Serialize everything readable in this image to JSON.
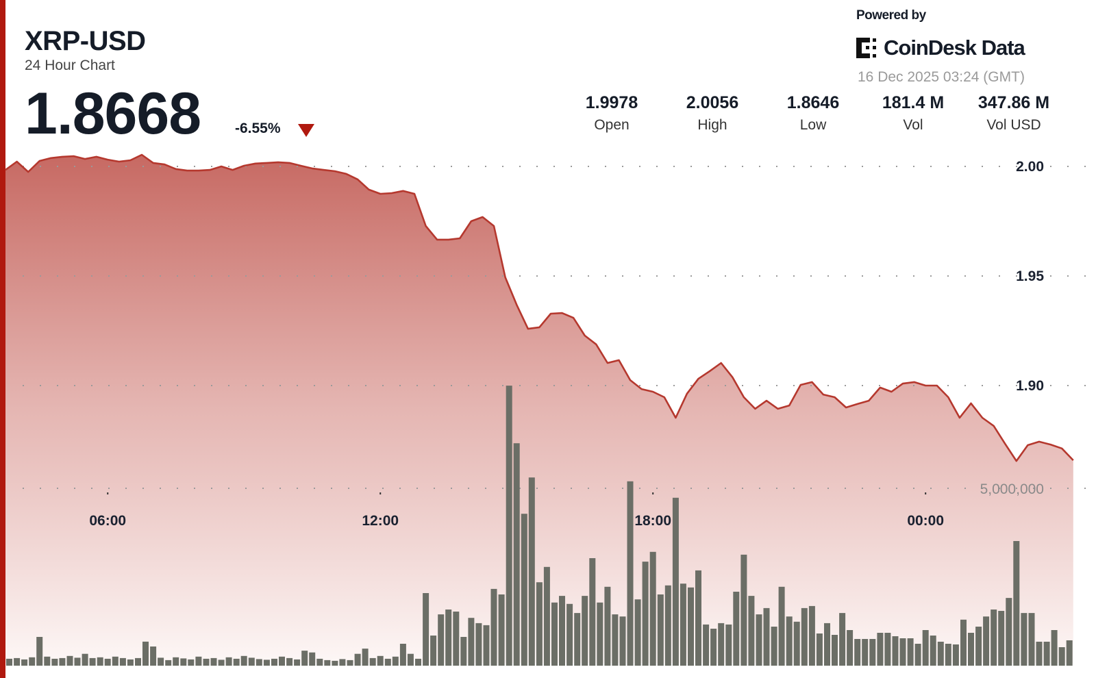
{
  "header": {
    "title": "XRP-USD",
    "subtitle": "24 Hour Chart",
    "price": "1.8668",
    "change": "-6.55%",
    "change_direction": "down",
    "powered_by": "Powered by",
    "brand": "CoinDesk Data",
    "timestamp": "16 Dec 2025 03:24 (GMT)"
  },
  "stats": [
    {
      "value": "1.9978",
      "label": "Open"
    },
    {
      "value": "2.0056",
      "label": "High"
    },
    {
      "value": "1.8646",
      "label": "Low"
    },
    {
      "value": "181.4 M",
      "label": "Vol"
    },
    {
      "value": "347.86 M",
      "label": "Vol USD"
    }
  ],
  "colors": {
    "accent": "#b0190f",
    "line": "#b5382e",
    "fill_top": "#c4625b",
    "volume_bar": "#6b6e66"
  },
  "chart_data": {
    "type": "area",
    "price": {
      "start_time": "03:45",
      "interval_minutes": 15,
      "values": [
        1.9984,
        2.0022,
        1.9975,
        2.0025,
        2.0038,
        2.0044,
        2.0047,
        2.0034,
        2.0044,
        2.0031,
        2.0022,
        2.0028,
        2.0053,
        2.0016,
        2.0009,
        1.9988,
        1.9981,
        1.9981,
        1.9984,
        2.0,
        1.9984,
        2.0003,
        2.0013,
        2.0016,
        2.0019,
        2.0016,
        2.0003,
        1.9991,
        1.9984,
        1.9978,
        1.9966,
        1.9941,
        1.9894,
        1.9875,
        1.9878,
        1.9888,
        1.9875,
        1.9728,
        1.9666,
        1.9666,
        1.9672,
        1.975,
        1.9769,
        1.9728,
        1.9494,
        1.9369,
        1.9259,
        1.9266,
        1.9328,
        1.9331,
        1.9309,
        1.9228,
        1.9188,
        1.9103,
        1.9116,
        1.9025,
        1.8984,
        1.8972,
        1.8947,
        1.8853,
        1.8963,
        1.9031,
        1.9066,
        1.9103,
        1.9038,
        1.8947,
        1.8894,
        1.8931,
        1.8894,
        1.8909,
        1.9003,
        1.9016,
        1.8959,
        1.8947,
        1.89,
        1.8916,
        1.8931,
        1.8991,
        1.8972,
        1.9009,
        1.9016,
        1.9,
        1.9,
        1.8947,
        1.8853,
        1.8919,
        1.8853,
        1.8816,
        1.8734,
        1.8656,
        1.8728,
        1.8744,
        1.8731,
        1.8713,
        1.8659
      ]
    },
    "volume": {
      "type": "bar",
      "start_time": "03:50",
      "interval_minutes": 10,
      "values": [
        120000,
        140000,
        100000,
        160000,
        745000,
        180000,
        120000,
        140000,
        200000,
        150000,
        260000,
        140000,
        160000,
        120000,
        180000,
        140000,
        100000,
        140000,
        610000,
        470000,
        150000,
        80000,
        160000,
        130000,
        100000,
        180000,
        120000,
        140000,
        90000,
        160000,
        120000,
        200000,
        150000,
        110000,
        90000,
        120000,
        180000,
        140000,
        100000,
        350000,
        300000,
        120000,
        80000,
        60000,
        110000,
        80000,
        260000,
        410000,
        140000,
        200000,
        120000,
        180000,
        550000,
        260000,
        120000,
        2000000,
        784000,
        1390000,
        1530000,
        1470000,
        745000,
        1290000,
        1140000,
        1080000,
        2120000,
        1960000,
        7940000,
        6290000,
        4270000,
        5310000,
        2310000,
        2750000,
        1730000,
        1920000,
        1690000,
        1430000,
        1920000,
        3000000,
        1730000,
        2180000,
        1390000,
        1330000,
        5200000,
        1820000,
        2900000,
        3180000,
        1960000,
        2220000,
        4730000,
        2270000,
        2160000,
        2650000,
        1100000,
        980000,
        1140000,
        1100000,
        2040000,
        3100000,
        1920000,
        1390000,
        1570000,
        1040000,
        2180000,
        1330000,
        1180000,
        1570000,
        1630000,
        843000,
        1140000,
        804000,
        1430000,
        941000,
        686000,
        686000,
        686000,
        863000,
        863000,
        765000,
        706000,
        706000,
        549000,
        941000,
        784000,
        608000,
        549000,
        530000,
        1240000,
        863000,
        1040000,
        1330000,
        1530000,
        1490000,
        1860000,
        3490000,
        1430000,
        1430000,
        608000,
        608000,
        941000,
        451000,
        647000
      ]
    },
    "x_ticks": [
      "06:00",
      "12:00",
      "18:00",
      "00:00"
    ],
    "y_ticks": [
      "2.00",
      "1.95",
      "1.90"
    ],
    "y_tick_values": [
      2.0,
      1.95,
      1.9
    ],
    "volume_tick": "5,000,000",
    "volume_tick_value": 5000000,
    "ylim": [
      1.8575,
      2.0075
    ],
    "grid": true,
    "legend": "none"
  }
}
